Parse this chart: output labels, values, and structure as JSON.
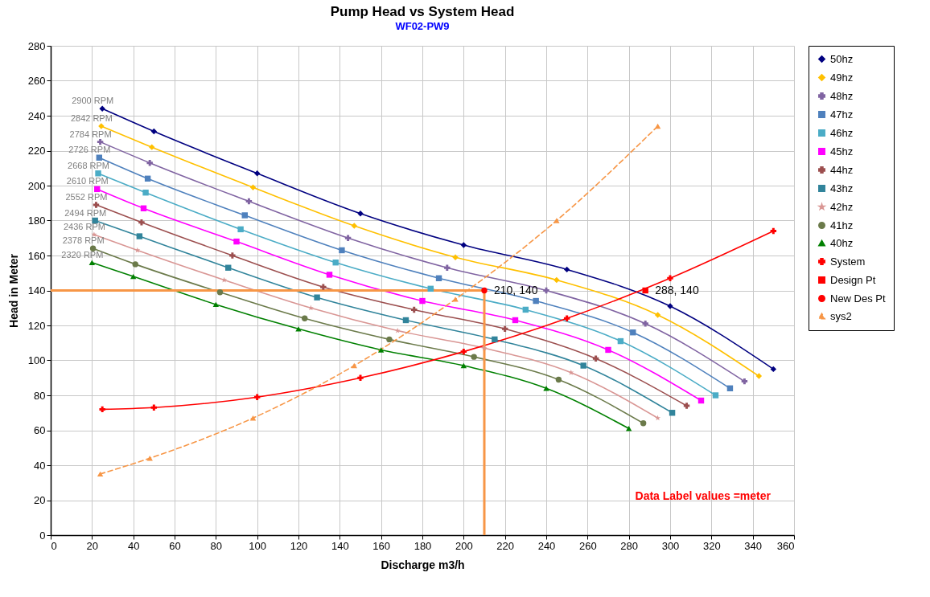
{
  "chart_data": {
    "type": "line",
    "title": "Pump Head vs System Head",
    "subtitle": "WF02-PW9",
    "xlabel": "Discharge m3/h",
    "ylabel": "Head in Meter",
    "xlim": [
      0,
      360
    ],
    "xticks": [
      0,
      20,
      40,
      60,
      80,
      100,
      120,
      140,
      160,
      180,
      200,
      220,
      240,
      260,
      280,
      300,
      320,
      340,
      360
    ],
    "ylim": [
      0,
      280
    ],
    "yticks": [
      0,
      20,
      40,
      60,
      80,
      100,
      120,
      140,
      160,
      180,
      200,
      220,
      240,
      260,
      280
    ],
    "grid": true,
    "legend": "right",
    "series": [
      {
        "name": "50hz",
        "color": "#000080",
        "marker": "diamond",
        "x": [
          25,
          50,
          100,
          150,
          200,
          250,
          300,
          350
        ],
        "values": [
          244,
          231,
          207,
          184,
          166,
          152,
          131,
          95
        ]
      },
      {
        "name": "49hz",
        "color": "#ffc000",
        "marker": "diamond",
        "x": [
          24.5,
          49,
          98,
          147,
          196,
          245,
          294,
          343
        ],
        "values": [
          234,
          222,
          199,
          177,
          159,
          146,
          126,
          91
        ]
      },
      {
        "name": "48hz",
        "color": "#8064a2",
        "marker": "cross",
        "x": [
          24,
          48,
          96,
          144,
          192,
          240,
          288,
          336
        ],
        "values": [
          225,
          213,
          191,
          170,
          153,
          140,
          121,
          88
        ]
      },
      {
        "name": "47hz",
        "color": "#4f81bd",
        "marker": "square",
        "x": [
          23.5,
          47,
          94,
          141,
          188,
          235,
          282,
          329
        ],
        "values": [
          216,
          204,
          183,
          163,
          147,
          134,
          116,
          84
        ]
      },
      {
        "name": "46hz",
        "color": "#4bacc6",
        "marker": "square",
        "x": [
          23,
          46,
          92,
          138,
          184,
          230,
          276,
          322
        ],
        "values": [
          207,
          196,
          175,
          156,
          141,
          129,
          111,
          80
        ]
      },
      {
        "name": "45hz",
        "color": "#ff00ff",
        "marker": "square",
        "x": [
          22.5,
          45,
          90,
          135,
          180,
          225,
          270,
          315
        ],
        "values": [
          198,
          187,
          168,
          149,
          134,
          123,
          106,
          77
        ]
      },
      {
        "name": "44hz",
        "color": "#9c4f4f",
        "marker": "cross",
        "x": [
          22,
          44,
          88,
          132,
          176,
          220,
          264,
          308
        ],
        "values": [
          189,
          179,
          160,
          142,
          129,
          118,
          101,
          74
        ]
      },
      {
        "name": "43hz",
        "color": "#31849b",
        "marker": "square",
        "x": [
          21.5,
          43,
          86,
          129,
          172,
          215,
          258,
          301
        ],
        "values": [
          180,
          171,
          153,
          136,
          123,
          112,
          97,
          70
        ]
      },
      {
        "name": "42hz",
        "color": "#d99694",
        "marker": "star",
        "x": [
          21,
          42,
          84,
          126,
          168,
          210,
          252,
          294
        ],
        "values": [
          172,
          163,
          146,
          130,
          117,
          107,
          93,
          67
        ]
      },
      {
        "name": "41hz",
        "color": "#6b7a4a",
        "marker": "circle",
        "x": [
          20.5,
          41,
          82,
          123,
          164,
          205,
          246,
          287
        ],
        "values": [
          164,
          155,
          139,
          124,
          112,
          102,
          89,
          64
        ]
      },
      {
        "name": "40hz",
        "color": "#008000",
        "marker": "triangle",
        "x": [
          20,
          40,
          80,
          120,
          160,
          200,
          240,
          280
        ],
        "values": [
          156,
          148,
          132,
          118,
          106,
          97,
          84,
          61
        ]
      },
      {
        "name": "System",
        "color": "#ff0000",
        "marker": "cross",
        "x": [
          25,
          50,
          100,
          150,
          200,
          250,
          300,
          350
        ],
        "values": [
          72,
          73,
          79,
          90,
          105,
          124,
          147,
          174
        ]
      },
      {
        "name": "Design Pt",
        "color": "#ff0000",
        "marker": "square",
        "x": [
          288
        ],
        "values": [
          140
        ],
        "value_labels": [
          "288, 140"
        ]
      },
      {
        "name": "New Des Pt",
        "color": "#ff0000",
        "marker": "circle",
        "x": [
          210
        ],
        "values": [
          140
        ],
        "value_labels": [
          "210, 140"
        ],
        "errors": [
          [
            0,
            140
          ]
        ],
        "xerrors": [
          [
            0,
            210
          ]
        ]
      },
      {
        "name": "sys2",
        "color": "#f79646",
        "marker": "triangle",
        "line_style": "dashed",
        "x": [
          24,
          48,
          98,
          147,
          196,
          245,
          294
        ],
        "values": [
          35,
          44,
          67,
          97,
          135,
          180,
          234
        ]
      }
    ],
    "annotations": [
      {
        "text": "2900 RPM",
        "x": 25,
        "y": 244
      },
      {
        "text": "2842 RPM",
        "x": 24.5,
        "y": 234
      },
      {
        "text": "2784 RPM",
        "x": 24,
        "y": 225
      },
      {
        "text": "2726 RPM",
        "x": 23.5,
        "y": 216
      },
      {
        "text": "2668 RPM",
        "x": 23,
        "y": 207
      },
      {
        "text": "2610 RPM",
        "x": 22.5,
        "y": 198
      },
      {
        "text": "2552 RPM",
        "x": 22,
        "y": 189
      },
      {
        "text": "2494 RPM",
        "x": 21.5,
        "y": 180
      },
      {
        "text": "2436 RPM",
        "x": 21,
        "y": 172
      },
      {
        "text": "2378 RPM",
        "x": 20.5,
        "y": 164
      },
      {
        "text": "2320 RPM",
        "x": 20,
        "y": 156
      },
      "Data Label values =meter"
    ]
  }
}
